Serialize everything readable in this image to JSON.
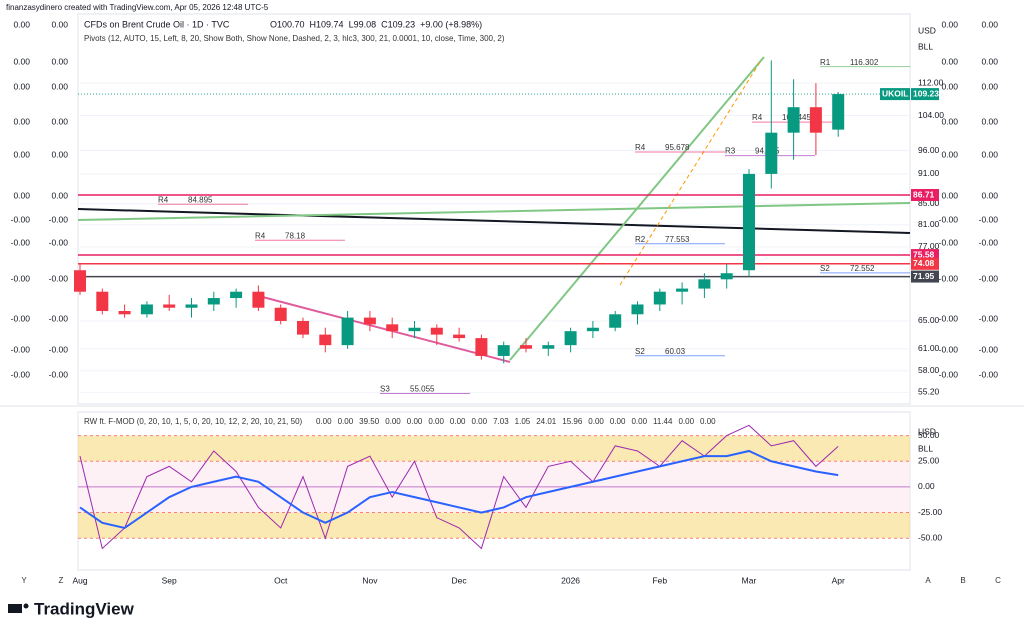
{
  "header": {
    "credit": "finanzasydinero created with TradingView.com, Apr 05, 2026 12:48 UTC-5",
    "symbol": "CFDs on Brent Crude Oil · 1D · TVC",
    "ohlc": [
      "O100.70",
      "H109.74",
      "L99.08",
      "C109.23",
      "+9.00 (+8.98%)"
    ],
    "pivots": "Pivots (12, AUTO, 15, Left, 8, 20, Show Both, Show None, Dashed, 2, 3, hlc3, 300, 21, 0.0001, 10, close, Time, 300, 2)",
    "oscillator": "RW ft. F-MOD (0, 20, 10, 1, 5, 0, 20, 10, 12, 2, 20, 10, 21, 50)",
    "oscillator_values": [
      {
        "text": "0.00",
        "color": "#ff9800"
      },
      {
        "text": "0.00",
        "color": "#4caf50"
      },
      {
        "text": "39.50",
        "color": "#9c27b0"
      },
      {
        "text": "0.00",
        "color": "#9c27b0"
      },
      {
        "text": "0.00",
        "color": "#e91e63"
      },
      {
        "text": "0.00",
        "color": "#2962ff"
      },
      {
        "text": "0.00",
        "color": "#f23645"
      },
      {
        "text": "0.00",
        "color": "#f23645"
      },
      {
        "text": "7.03",
        "color": "#4caf50"
      },
      {
        "text": "1.05",
        "color": "#f23645"
      },
      {
        "text": "24.01",
        "color": "#2962ff"
      },
      {
        "text": "15.96",
        "color": "#ff9800"
      },
      {
        "text": "0.00",
        "color": "#f23645"
      },
      {
        "text": "0.00",
        "color": "#2962ff"
      },
      {
        "text": "0.00",
        "color": "#2962ff"
      },
      {
        "text": "11.44",
        "color": "#2962ff"
      },
      {
        "text": "0.00",
        "color": "#f23645"
      },
      {
        "text": "0.00",
        "color": "#f23645"
      }
    ],
    "currency": "USD",
    "unit": "BLL"
  },
  "side_scales": {
    "left": [
      "0.00",
      "0.00",
      "0.00",
      "0.00",
      "0.00",
      "0.00",
      "-0.00",
      "-0.00",
      "-0.00",
      "-0.00",
      "-0.00",
      "-0.00"
    ],
    "right": [
      "0.00",
      "0.00",
      "0.00",
      "0.00",
      "0.00",
      "0.00",
      "-0.00",
      "-0.00",
      "-0.00",
      "-0.00",
      "-0.00",
      "-0.00"
    ]
  },
  "footer": {
    "brand": "TradingView",
    "left_buttons": [
      "Y",
      "Z"
    ],
    "right_buttons": [
      "A",
      "B",
      "C"
    ]
  },
  "chart_data": [
    {
      "type": "candlestick",
      "categories": [
        "Aug",
        null,
        null,
        null,
        "Sep",
        null,
        null,
        null,
        null,
        "Oct",
        null,
        null,
        null,
        "Nov",
        null,
        null,
        null,
        "Dec",
        null,
        null,
        null,
        null,
        "2026",
        null,
        null,
        null,
        "Feb",
        null,
        null,
        null,
        "Mar",
        null,
        null,
        null,
        "Apr"
      ],
      "open": [
        73,
        69.5,
        66.5,
        66,
        67.5,
        67,
        67.5,
        68.5,
        69.5,
        67,
        65,
        63,
        61.5,
        65.5,
        64.5,
        63.5,
        64,
        63,
        62.5,
        60,
        61.5,
        61,
        61.5,
        63.5,
        64,
        66,
        67.5,
        69.5,
        70,
        71.5,
        73,
        91,
        100,
        106,
        100.7
      ],
      "high": [
        74,
        70,
        67.5,
        68,
        69,
        68.5,
        69.5,
        70,
        70.5,
        67.5,
        65.5,
        64,
        66.5,
        66.5,
        65.5,
        65,
        64.5,
        64,
        63,
        62,
        62.5,
        62,
        64,
        65,
        66.5,
        68,
        70,
        71,
        72.5,
        74,
        92,
        118,
        113,
        112,
        109.74
      ],
      "low": [
        69,
        66,
        65.5,
        65.5,
        66.5,
        65.5,
        66.5,
        67,
        66.5,
        64.5,
        62.5,
        60.5,
        61,
        63.5,
        62.5,
        62.5,
        61.5,
        62,
        59.5,
        59,
        60.5,
        60,
        60.5,
        62.5,
        63.5,
        64.5,
        66.5,
        67.5,
        68.5,
        70,
        72,
        88,
        94,
        95,
        99.08
      ],
      "close": [
        69.5,
        66.5,
        66,
        67.5,
        67,
        67.5,
        68.5,
        69.5,
        67,
        65,
        63,
        61.5,
        65.5,
        64.5,
        63.5,
        64,
        63,
        62.5,
        60,
        61.5,
        61,
        61.5,
        63.5,
        64,
        66,
        67.5,
        69.5,
        70,
        71.5,
        72.5,
        91,
        100,
        106,
        100,
        109.23
      ],
      "up_color": "#089981",
      "down_color": "#f23645",
      "log_scale": true,
      "ylim": [
        54,
        130
      ],
      "yticks": [
        {
          "value": 55.2,
          "label": "55.20"
        },
        {
          "value": 58,
          "label": "58.00"
        },
        {
          "value": 61,
          "label": "61.00"
        },
        {
          "value": 65,
          "label": "65.00"
        },
        {
          "value": 77,
          "label": "77.00"
        },
        {
          "value": 81,
          "label": "81.00"
        },
        {
          "value": 85,
          "label": "85.00"
        },
        {
          "value": 91,
          "label": "91.00"
        },
        {
          "value": 96,
          "label": "96.00"
        },
        {
          "value": 104,
          "label": "104.00"
        },
        {
          "value": 112,
          "label": "112.00"
        }
      ],
      "price_labels": [
        {
          "name": "UKOIL",
          "value": 109.23,
          "color": "#089981"
        },
        {
          "value": 86.71,
          "color": "#e91e63"
        },
        {
          "value": 75.58,
          "color": "#e91e63"
        },
        {
          "value": 74.08,
          "color": "#f23645"
        },
        {
          "value": 71.95,
          "color": "#434651"
        }
      ],
      "pivots": [
        {
          "level": "R1",
          "value": 116.302,
          "color": "#4caf50"
        },
        {
          "level": "R4",
          "value": 102.445,
          "color": "#e91e63"
        },
        {
          "level": "R4",
          "value": 95.678,
          "color": "#e91e63"
        },
        {
          "level": "R3",
          "value": 94.895,
          "color": "#9c27b0"
        },
        {
          "level": "R2",
          "value": 77.553,
          "color": "#2962ff"
        },
        {
          "level": "R4",
          "value": 84.895,
          "color": "#e91e63"
        },
        {
          "level": "R4",
          "value": 78.18,
          "color": "#e91e63"
        },
        {
          "level": "S2",
          "value": 72.552,
          "color": "#2962ff"
        },
        {
          "level": "S2",
          "value": 60.03,
          "color": "#2962ff"
        },
        {
          "level": "S3",
          "value": 55.055,
          "color": "#9c27b0"
        }
      ]
    },
    {
      "type": "line",
      "ylim": [
        -81,
        73
      ],
      "yticks": [
        {
          "value": 50,
          "label": "50.00"
        },
        {
          "value": 25,
          "label": "25.00"
        },
        {
          "value": 0,
          "label": "0.00"
        },
        {
          "value": -25,
          "label": "-25.00"
        },
        {
          "value": -50,
          "label": "-50.00"
        }
      ],
      "band_color": "#f7d774",
      "series": [
        {
          "color": "#2962ff",
          "values": [
            -20,
            -35,
            -40,
            -25,
            -10,
            0,
            5,
            10,
            5,
            -10,
            -25,
            -35,
            -25,
            -10,
            -5,
            -10,
            -15,
            -20,
            -25,
            -20,
            -10,
            -5,
            0,
            5,
            10,
            15,
            20,
            25,
            30,
            30,
            35,
            25,
            20,
            15,
            11.44
          ]
        },
        {
          "color": "#9c27b0",
          "values": [
            30,
            -60,
            -40,
            10,
            20,
            5,
            35,
            15,
            -20,
            -40,
            10,
            -50,
            20,
            30,
            -10,
            25,
            -30,
            -40,
            -60,
            10,
            -20,
            20,
            25,
            5,
            40,
            35,
            20,
            45,
            30,
            50,
            60,
            40,
            45,
            20,
            39.5
          ]
        }
      ]
    }
  ]
}
